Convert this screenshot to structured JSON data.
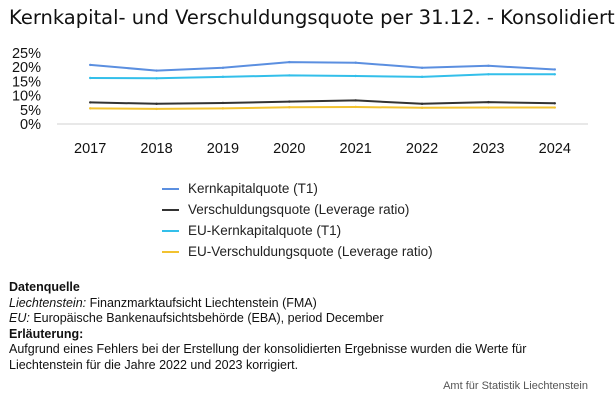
{
  "chart_data": {
    "type": "line",
    "title": "Kernkapital- und Verschuldungsquote per 31.12. - Konsolidiert",
    "x": [
      "2017",
      "2018",
      "2019",
      "2020",
      "2021",
      "2022",
      "2023",
      "2024"
    ],
    "y_ticks": [
      "0%",
      "5%",
      "10%",
      "15%",
      "20%",
      "25%"
    ],
    "ylim": [
      0,
      25
    ],
    "grid": false,
    "legend_position": "bottom",
    "series": [
      {
        "name": "Kernkapitalquote (T1)",
        "color": "#5b8fe0",
        "values": [
          20.8,
          18.8,
          19.8,
          21.8,
          21.6,
          19.8,
          20.5,
          19.2
        ]
      },
      {
        "name": "Verschuldungsquote (Leverage ratio)",
        "color": "#333333",
        "values": [
          7.6,
          7.1,
          7.4,
          7.9,
          8.3,
          7.1,
          7.7,
          7.3
        ]
      },
      {
        "name": "EU-Kernkapitalquote (T1)",
        "color": "#33bfea",
        "values": [
          16.2,
          16.1,
          16.6,
          17.1,
          16.9,
          16.6,
          17.5,
          17.5
        ]
      },
      {
        "name": "EU-Verschuldungsquote (Leverage ratio)",
        "color": "#f2c230",
        "values": [
          5.5,
          5.3,
          5.5,
          5.9,
          6.0,
          5.7,
          5.8,
          5.8
        ]
      }
    ]
  },
  "notes": {
    "source_heading": "Datenquelle",
    "source_li_label": "Liechtenstein:",
    "source_li_text": " Finanzmarktaufsicht Liechtenstein (FMA)",
    "source_eu_label": "EU:",
    "source_eu_text": " Europäische Bankenaufsichtsbehörde (EBA), period December",
    "explanation_heading": "Erläuterung:",
    "explanation_text": "Aufgrund eines Fehlers bei der Erstellung der konsolidierten Ergebnisse wurden die Werte für Liechtenstein für die Jahre 2022 und 2023 korrigiert."
  },
  "footer": {
    "credit": "Amt für Statistik Liechtenstein"
  }
}
